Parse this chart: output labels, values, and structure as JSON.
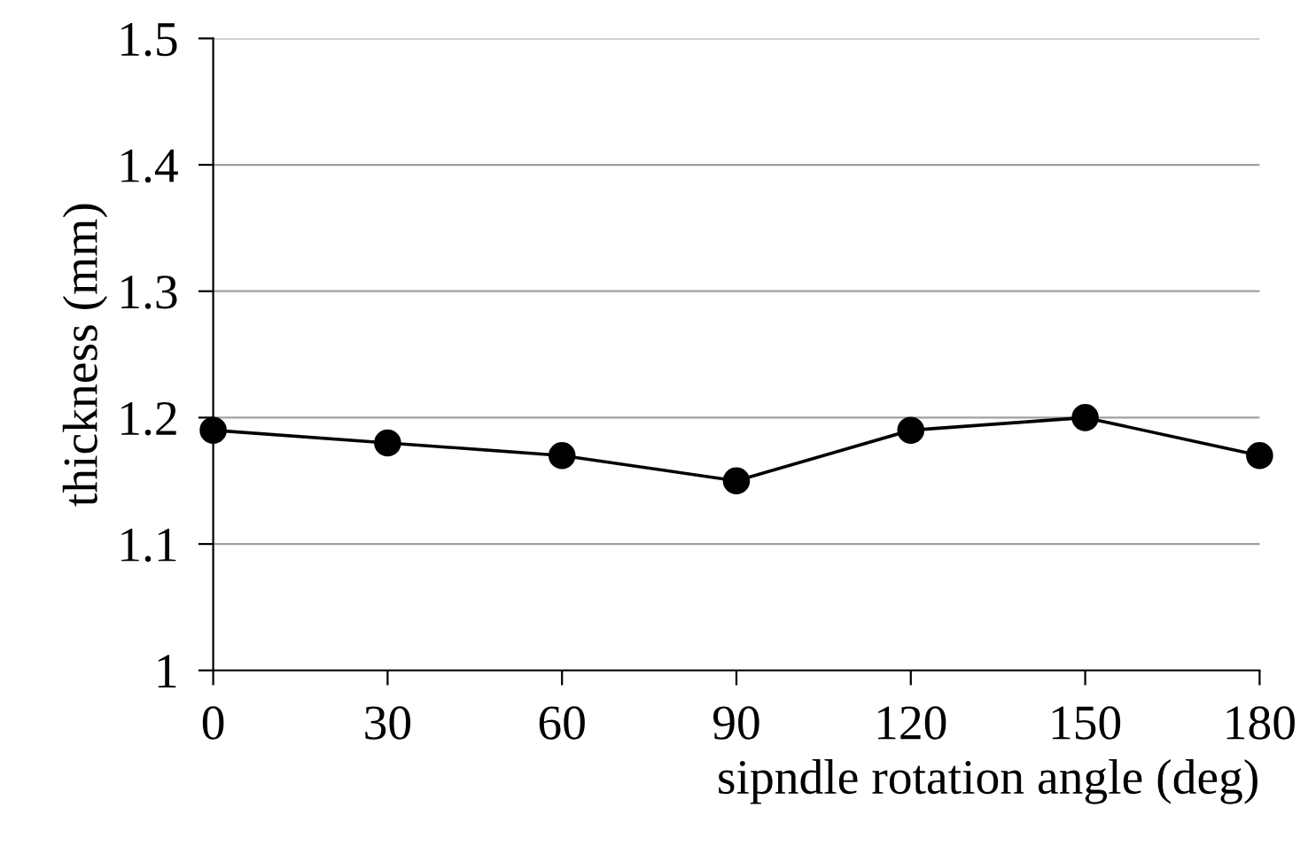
{
  "chart_data": {
    "type": "line",
    "xlabel": "sipndle rotation angle (deg)",
    "ylabel": "thickness (mm)",
    "x": [
      0,
      30,
      60,
      90,
      120,
      150,
      180
    ],
    "series": [
      {
        "color": "#000000",
        "values": [
          1.19,
          1.18,
          1.17,
          1.15,
          1.19,
          1.2,
          1.17
        ]
      }
    ],
    "xlim": [
      0,
      180
    ],
    "xticks": [
      0,
      30,
      60,
      90,
      120,
      150,
      180
    ],
    "ylim": [
      1,
      1.5
    ],
    "yticks": [
      1,
      1.1,
      1.2,
      1.3,
      1.4,
      1.5
    ],
    "grid": "y",
    "marker": "circle",
    "line_style": "solid"
  }
}
